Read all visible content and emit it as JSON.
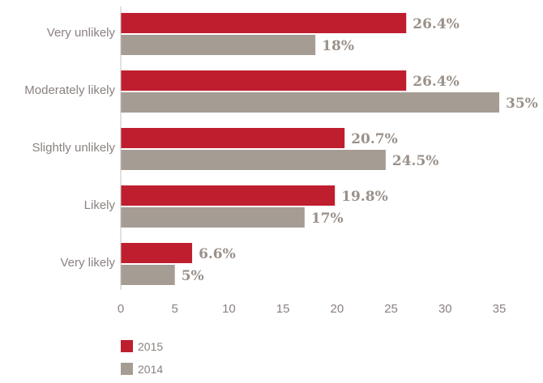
{
  "chart_data": {
    "type": "bar",
    "orientation": "horizontal",
    "categories": [
      "Very unlikely",
      "Moderately likely",
      "Slightly unlikely",
      "Likely",
      "Very likely"
    ],
    "series": [
      {
        "name": "2015",
        "color": "#bf1e2e",
        "values": [
          26.4,
          26.4,
          20.7,
          19.8,
          6.6
        ],
        "labels": [
          "26.4%",
          "26.4%",
          "20.7%",
          "19.8%",
          "6.6%"
        ]
      },
      {
        "name": "2014",
        "color": "#a59c93",
        "values": [
          18,
          35,
          24.5,
          17,
          5
        ],
        "labels": [
          "18%",
          "35%",
          "24.5%",
          "17%",
          "5%"
        ]
      }
    ],
    "xlim": [
      0,
      35
    ],
    "xticks": [
      "0",
      "5",
      "10",
      "15",
      "20",
      "25",
      "30",
      "35"
    ],
    "legend_position": "bottom-left",
    "grid": false
  }
}
